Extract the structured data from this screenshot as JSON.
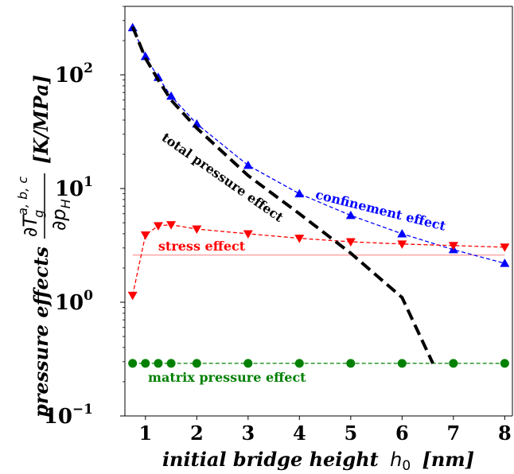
{
  "chart_data": {
    "type": "line",
    "xlabel": "initial bridge height",
    "xlabel_symbol": "h",
    "xlabel_subscript": "0",
    "xlabel_unit": "[nm]",
    "ylabel_prefix": "pressure effects",
    "ylabel_frac_num": "∂T",
    "ylabel_frac_num_sub": "g",
    "ylabel_frac_num_sup": "a, b, c",
    "ylabel_frac_den": "∂p",
    "ylabel_frac_den_sub": "H",
    "ylabel_unit": "[K/MPa]",
    "xlim": [
      0.6,
      8.15
    ],
    "ylim": [
      0.1,
      400
    ],
    "yscale": "log",
    "xticks": [
      1,
      2,
      3,
      4,
      5,
      6,
      7,
      8
    ],
    "yticks": [
      {
        "value": 0.1,
        "base": "10",
        "exp": "−1"
      },
      {
        "value": 1,
        "base": "10",
        "exp": "0"
      },
      {
        "value": 10,
        "base": "10",
        "exp": "1"
      },
      {
        "value": 100,
        "base": "10",
        "exp": "2"
      }
    ],
    "grid": false,
    "series": [
      {
        "key": "confinement",
        "color": "#0000ff",
        "marker": "triangle-up",
        "linestyle": "dashed",
        "x": [
          0.75,
          1.0,
          1.25,
          1.5,
          2.0,
          3.0,
          4.0,
          5.0,
          6.0,
          7.0,
          8.0
        ],
        "y": [
          260,
          145,
          95,
          65,
          37,
          16,
          9.0,
          5.8,
          4.0,
          2.9,
          2.2
        ]
      },
      {
        "key": "stress",
        "color": "#ff0000",
        "marker": "triangle-down",
        "linestyle": "dashed",
        "x": [
          0.75,
          1.0,
          1.25,
          1.5,
          2.0,
          3.0,
          4.0,
          5.0,
          6.0,
          7.0,
          8.0
        ],
        "y": [
          1.15,
          3.9,
          4.7,
          4.8,
          4.4,
          4.0,
          3.65,
          3.4,
          3.25,
          3.15,
          3.05
        ]
      },
      {
        "key": "matrix",
        "color": "#008000",
        "marker": "circle",
        "linestyle": "dashed",
        "x": [
          0.75,
          1.0,
          1.25,
          1.5,
          2.0,
          3.0,
          4.0,
          5.0,
          6.0,
          7.0,
          8.0
        ],
        "y": [
          0.29,
          0.29,
          0.29,
          0.29,
          0.29,
          0.29,
          0.29,
          0.29,
          0.29,
          0.29,
          0.29
        ]
      },
      {
        "key": "total",
        "color": "#000000",
        "marker": "none",
        "linestyle": "dashed-thick",
        "x": [
          0.75,
          1.0,
          1.25,
          1.5,
          2.0,
          3.0,
          4.0,
          5.0,
          6.0,
          6.6
        ],
        "y": [
          265,
          140,
          90,
          60,
          34,
          13,
          6.0,
          2.7,
          1.1,
          0.29
        ]
      }
    ],
    "reference_line": {
      "y": 2.6,
      "color": "#ff8080",
      "x": [
        0.75,
        8.0
      ]
    },
    "annotations": [
      {
        "text": "total pressure effect",
        "color": "#000000",
        "x": 1.3,
        "y": 27,
        "rotate": 35
      },
      {
        "text": "confinement effect",
        "color": "#0000ff",
        "x": 4.3,
        "y": 8.2,
        "rotate": 14
      },
      {
        "text": "stress effect",
        "color": "#ff0000",
        "x": 1.25,
        "y": 2.85,
        "rotate": 0
      },
      {
        "text": "matrix pressure effect",
        "color": "#008000",
        "x": 1.05,
        "y": 0.2,
        "rotate": 0
      }
    ]
  }
}
